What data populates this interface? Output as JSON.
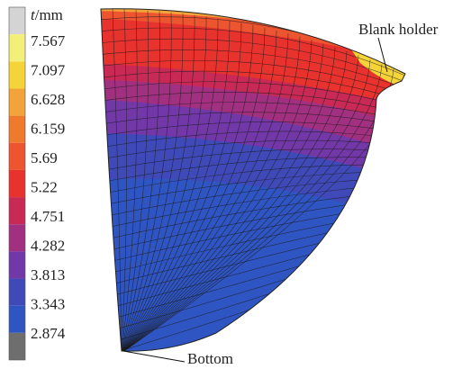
{
  "legend": {
    "title_var": "t",
    "title_unit": "/mm",
    "levels": [
      7.567,
      7.097,
      6.628,
      6.159,
      5.69,
      5.22,
      4.751,
      4.282,
      3.813,
      3.343,
      2.874
    ],
    "colors": [
      "#d4d4d4",
      "#f2f07a",
      "#f5d43a",
      "#f2a43a",
      "#ef7a2e",
      "#ed5530",
      "#e8322e",
      "#c82a55",
      "#a23080",
      "#7238a8",
      "#3f4ab8",
      "#2f55c2",
      "#6e6e6e"
    ]
  },
  "annotations": {
    "blank_holder": "Blank holder",
    "bottom": "Bottom"
  }
}
